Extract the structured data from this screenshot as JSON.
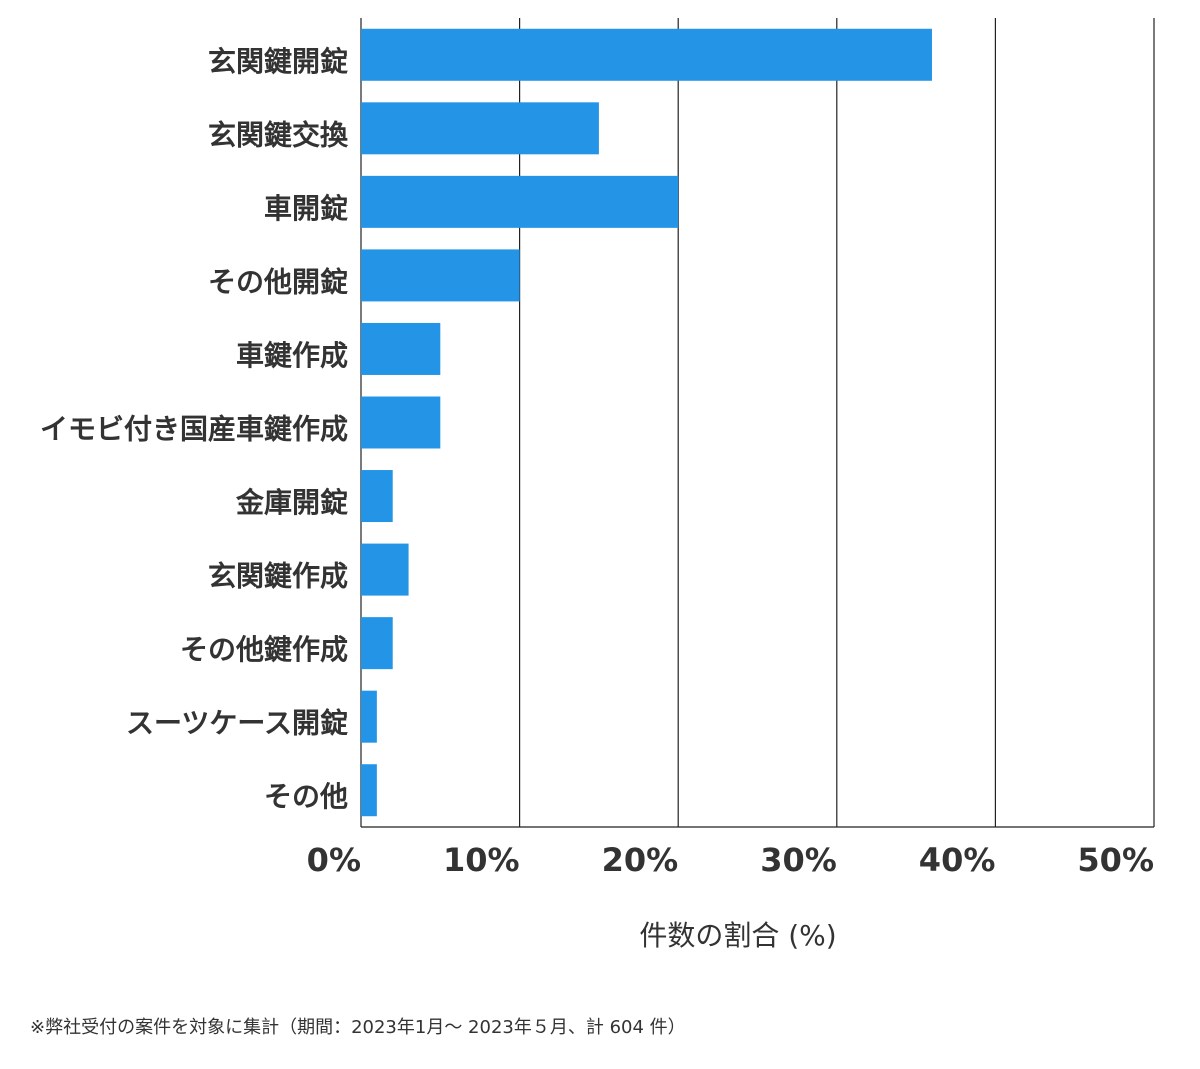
{
  "chart_data": {
    "type": "bar",
    "orientation": "horizontal",
    "categories": [
      "玄関鍵開錠",
      "玄関鍵交換",
      "車開錠",
      "その他開錠",
      "車鍵作成",
      "イモビ付き国産車鍵作成",
      "金庫開錠",
      "玄関鍵作成",
      "その他鍵作成",
      "スーツケース開錠",
      "その他"
    ],
    "values": [
      36,
      15,
      20,
      10,
      5,
      5,
      2,
      3,
      2,
      1,
      1
    ],
    "color": "#2494e6",
    "xlabel": "件数の割合 (%)",
    "xlim": [
      0,
      50
    ],
    "xticks": [
      {
        "value": 0,
        "label": "0%"
      },
      {
        "value": 10,
        "label": "10%"
      },
      {
        "value": 20,
        "label": "20%"
      },
      {
        "value": 30,
        "label": "30%"
      },
      {
        "value": 40,
        "label": "40%"
      },
      {
        "value": 50,
        "label": "50%"
      }
    ],
    "grid": true,
    "note": "※弊社受付の案件を対象に集計（期間：2023年1月～ 2023年５月、計 604 件）"
  }
}
